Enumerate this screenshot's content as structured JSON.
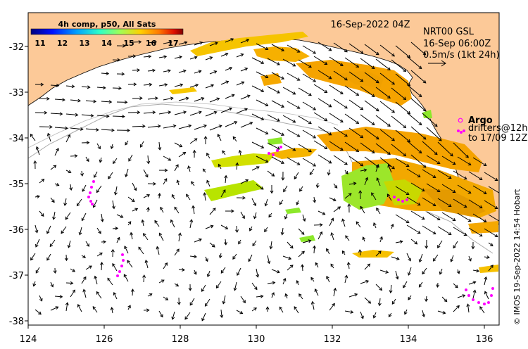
{
  "title_box": {
    "product": "4h comp, p50, All Sats",
    "colorbar_ticks": [
      "11",
      "12",
      "13",
      "14",
      "15",
      "16",
      "17"
    ],
    "colorbar_colors": [
      "#00007f",
      "#0010ff",
      "#00a0ff",
      "#2dffc9",
      "#9cff5a",
      "#ffd000",
      "#ff7a00",
      "#e01000",
      "#7f0000"
    ]
  },
  "timestamp": "16-Sep-2022 04Z",
  "current_legend": {
    "line1": "NRT00 GSL",
    "line2": "16-Sep 06:00Z",
    "line3": "0.5m/s (1kt 24h)"
  },
  "drifter_legend": {
    "argo_label": "Argo",
    "drifters_line1": "drifters@12h",
    "drifters_line2": "to 17/09 12Z"
  },
  "credit": "© IMOS 19-Sep-2022 14:54 Hobart",
  "axes": {
    "x_ticks": [
      "124",
      "126",
      "128",
      "130",
      "132",
      "134",
      "136"
    ],
    "y_ticks": [
      "-32",
      "-33",
      "-34",
      "-35",
      "-36",
      "-37",
      "-38"
    ]
  },
  "colors": {
    "land": "#fcc998",
    "ocean": "#ffffff",
    "sst_warm": "#f5a300",
    "sst_mid": "#ffd000",
    "sst_cool": "#9cff2a",
    "drifter": "#ff00ff",
    "bathymetry": "#aaaaaa"
  }
}
